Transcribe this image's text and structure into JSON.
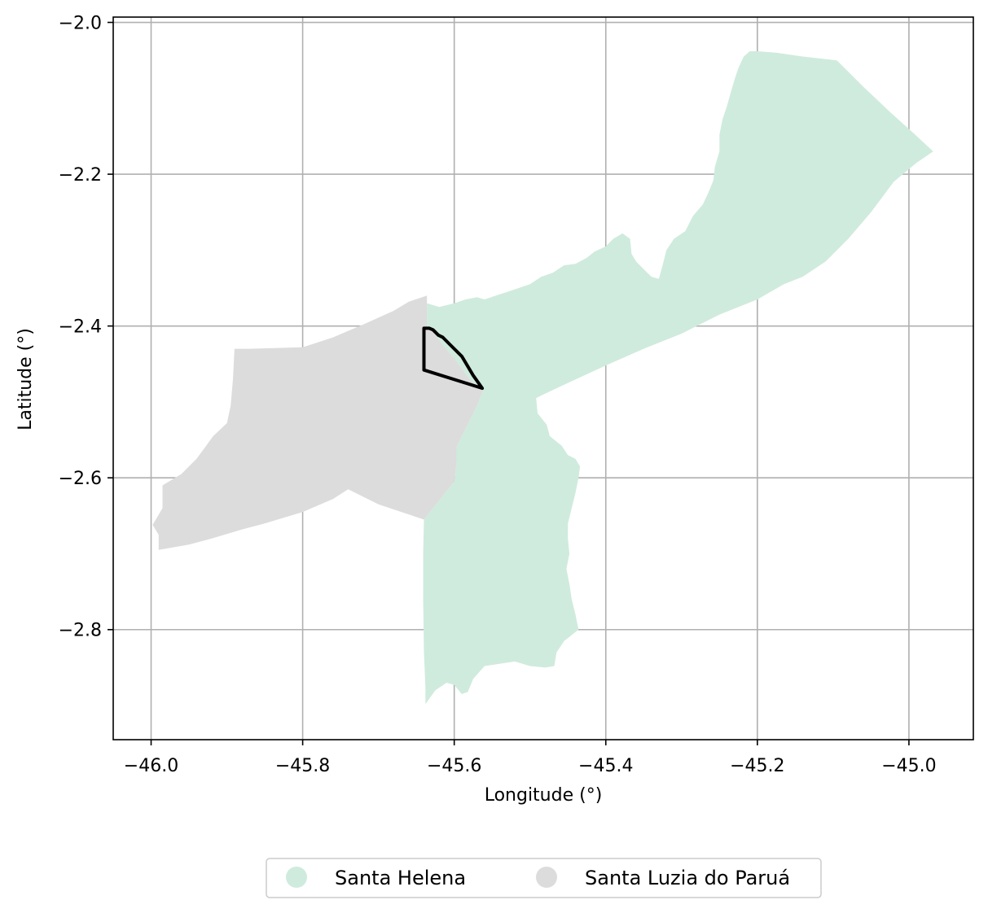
{
  "chart_data": {
    "type": "map",
    "xlabel": "Longitude (°)",
    "ylabel": "Latitude (°)",
    "xlim": [
      -46.05,
      -44.915
    ],
    "ylim": [
      -2.945,
      -1.993
    ],
    "x_ticks": [
      {
        "value": -46.0,
        "label": "−46.0"
      },
      {
        "value": -45.8,
        "label": "−45.8"
      },
      {
        "value": -45.6,
        "label": "−45.6"
      },
      {
        "value": -45.4,
        "label": "−45.4"
      },
      {
        "value": -45.2,
        "label": "−45.2"
      },
      {
        "value": -45.0,
        "label": "−45.0"
      }
    ],
    "y_ticks": [
      {
        "value": -2.0,
        "label": "−2.0"
      },
      {
        "value": -2.2,
        "label": "−2.2"
      },
      {
        "value": -2.4,
        "label": "−2.4"
      },
      {
        "value": -2.6,
        "label": "−2.6"
      },
      {
        "value": -2.8,
        "label": "−2.8"
      }
    ],
    "grid": true,
    "legend_placement": "bottom-center",
    "regions": [
      {
        "name": "Santa Helena",
        "color": "#cfebdd",
        "polygon": [
          [
            -45.636,
            -2.37
          ],
          [
            -45.62,
            -2.375
          ],
          [
            -45.6,
            -2.37
          ],
          [
            -45.585,
            -2.365
          ],
          [
            -45.57,
            -2.362
          ],
          [
            -45.56,
            -2.365
          ],
          [
            -45.545,
            -2.36
          ],
          [
            -45.53,
            -2.355
          ],
          [
            -45.515,
            -2.35
          ],
          [
            -45.5,
            -2.345
          ],
          [
            -45.485,
            -2.335
          ],
          [
            -45.47,
            -2.33
          ],
          [
            -45.455,
            -2.32
          ],
          [
            -45.44,
            -2.318
          ],
          [
            -45.425,
            -2.31
          ],
          [
            -45.415,
            -2.302
          ],
          [
            -45.4,
            -2.295
          ],
          [
            -45.39,
            -2.285
          ],
          [
            -45.378,
            -2.278
          ],
          [
            -45.368,
            -2.285
          ],
          [
            -45.366,
            -2.305
          ],
          [
            -45.36,
            -2.315
          ],
          [
            -45.35,
            -2.325
          ],
          [
            -45.34,
            -2.335
          ],
          [
            -45.33,
            -2.338
          ],
          [
            -45.325,
            -2.32
          ],
          [
            -45.32,
            -2.3
          ],
          [
            -45.31,
            -2.285
          ],
          [
            -45.295,
            -2.275
          ],
          [
            -45.285,
            -2.255
          ],
          [
            -45.272,
            -2.24
          ],
          [
            -45.265,
            -2.225
          ],
          [
            -45.258,
            -2.208
          ],
          [
            -45.256,
            -2.19
          ],
          [
            -45.25,
            -2.17
          ],
          [
            -45.25,
            -2.148
          ],
          [
            -45.246,
            -2.128
          ],
          [
            -45.24,
            -2.11
          ],
          [
            -45.235,
            -2.092
          ],
          [
            -45.23,
            -2.075
          ],
          [
            -45.225,
            -2.06
          ],
          [
            -45.218,
            -2.045
          ],
          [
            -45.21,
            -2.038
          ],
          [
            -45.2,
            -2.038
          ],
          [
            -45.175,
            -2.04
          ],
          [
            -45.14,
            -2.045
          ],
          [
            -45.095,
            -2.05
          ],
          [
            -45.06,
            -2.085
          ],
          [
            -45.025,
            -2.118
          ],
          [
            -44.995,
            -2.145
          ],
          [
            -44.968,
            -2.17
          ],
          [
            -44.99,
            -2.185
          ],
          [
            -45.02,
            -2.21
          ],
          [
            -45.05,
            -2.25
          ],
          [
            -45.08,
            -2.285
          ],
          [
            -45.11,
            -2.315
          ],
          [
            -45.14,
            -2.335
          ],
          [
            -45.165,
            -2.345
          ],
          [
            -45.2,
            -2.365
          ],
          [
            -45.25,
            -2.385
          ],
          [
            -45.3,
            -2.41
          ],
          [
            -45.35,
            -2.43
          ],
          [
            -45.4,
            -2.452
          ],
          [
            -45.45,
            -2.475
          ],
          [
            -45.482,
            -2.49
          ],
          [
            -45.492,
            -2.495
          ],
          [
            -45.49,
            -2.515
          ],
          [
            -45.478,
            -2.53
          ],
          [
            -45.474,
            -2.545
          ],
          [
            -45.458,
            -2.558
          ],
          [
            -45.45,
            -2.57
          ],
          [
            -45.44,
            -2.575
          ],
          [
            -45.434,
            -2.585
          ],
          [
            -45.436,
            -2.6
          ],
          [
            -45.44,
            -2.62
          ],
          [
            -45.445,
            -2.64
          ],
          [
            -45.45,
            -2.66
          ],
          [
            -45.45,
            -2.68
          ],
          [
            -45.448,
            -2.7
          ],
          [
            -45.452,
            -2.72
          ],
          [
            -45.448,
            -2.74
          ],
          [
            -45.445,
            -2.76
          ],
          [
            -45.44,
            -2.78
          ],
          [
            -45.436,
            -2.8
          ],
          [
            -45.455,
            -2.815
          ],
          [
            -45.465,
            -2.83
          ],
          [
            -45.468,
            -2.848
          ],
          [
            -45.48,
            -2.85
          ],
          [
            -45.5,
            -2.848
          ],
          [
            -45.52,
            -2.842
          ],
          [
            -45.54,
            -2.845
          ],
          [
            -45.56,
            -2.848
          ],
          [
            -45.575,
            -2.865
          ],
          [
            -45.582,
            -2.882
          ],
          [
            -45.59,
            -2.885
          ],
          [
            -45.6,
            -2.873
          ],
          [
            -45.61,
            -2.87
          ],
          [
            -45.625,
            -2.88
          ],
          [
            -45.638,
            -2.898
          ],
          [
            -45.638,
            -2.875
          ],
          [
            -45.64,
            -2.83
          ],
          [
            -45.641,
            -2.76
          ],
          [
            -45.641,
            -2.7
          ],
          [
            -45.64,
            -2.655
          ],
          [
            -45.612,
            -2.62
          ],
          [
            -45.6,
            -2.605
          ],
          [
            -45.597,
            -2.58
          ],
          [
            -45.597,
            -2.56
          ],
          [
            -45.59,
            -2.545
          ],
          [
            -45.58,
            -2.525
          ],
          [
            -45.57,
            -2.505
          ],
          [
            -45.562,
            -2.485
          ],
          [
            -45.58,
            -2.47
          ],
          [
            -45.598,
            -2.445
          ],
          [
            -45.615,
            -2.425
          ],
          [
            -45.63,
            -2.405
          ],
          [
            -45.636,
            -2.4
          ]
        ]
      },
      {
        "name": "Santa Luzia do Paruá",
        "color": "#dcdcdc",
        "polygon": [
          [
            -45.636,
            -2.36
          ],
          [
            -45.636,
            -2.4
          ],
          [
            -45.63,
            -2.405
          ],
          [
            -45.615,
            -2.425
          ],
          [
            -45.598,
            -2.445
          ],
          [
            -45.58,
            -2.47
          ],
          [
            -45.562,
            -2.485
          ],
          [
            -45.57,
            -2.505
          ],
          [
            -45.58,
            -2.525
          ],
          [
            -45.59,
            -2.545
          ],
          [
            -45.597,
            -2.56
          ],
          [
            -45.597,
            -2.58
          ],
          [
            -45.6,
            -2.605
          ],
          [
            -45.612,
            -2.62
          ],
          [
            -45.64,
            -2.655
          ],
          [
            -45.7,
            -2.635
          ],
          [
            -45.74,
            -2.615
          ],
          [
            -45.76,
            -2.628
          ],
          [
            -45.8,
            -2.645
          ],
          [
            -45.85,
            -2.66
          ],
          [
            -45.88,
            -2.668
          ],
          [
            -45.92,
            -2.68
          ],
          [
            -45.95,
            -2.688
          ],
          [
            -45.99,
            -2.695
          ],
          [
            -45.99,
            -2.675
          ],
          [
            -45.998,
            -2.662
          ],
          [
            -45.985,
            -2.64
          ],
          [
            -45.985,
            -2.61
          ],
          [
            -45.96,
            -2.595
          ],
          [
            -45.94,
            -2.575
          ],
          [
            -45.918,
            -2.545
          ],
          [
            -45.9,
            -2.528
          ],
          [
            -45.895,
            -2.505
          ],
          [
            -45.892,
            -2.47
          ],
          [
            -45.89,
            -2.43
          ],
          [
            -45.87,
            -2.43
          ],
          [
            -45.8,
            -2.428
          ],
          [
            -45.76,
            -2.415
          ],
          [
            -45.72,
            -2.398
          ],
          [
            -45.68,
            -2.38
          ],
          [
            -45.66,
            -2.368
          ]
        ]
      }
    ],
    "outline": {
      "color": "#000000",
      "polygon": [
        [
          -45.64,
          -2.403
        ],
        [
          -45.64,
          -2.458
        ],
        [
          -45.563,
          -2.482
        ],
        [
          -45.575,
          -2.465
        ],
        [
          -45.59,
          -2.44
        ],
        [
          -45.605,
          -2.425
        ],
        [
          -45.615,
          -2.415
        ],
        [
          -45.621,
          -2.412
        ],
        [
          -45.625,
          -2.408
        ],
        [
          -45.628,
          -2.405
        ],
        [
          -45.633,
          -2.403
        ]
      ]
    },
    "legend": [
      {
        "label": "Santa Helena",
        "color": "#cfebdd"
      },
      {
        "label": "Santa Luzia do Paruá",
        "color": "#dcdcdc"
      }
    ]
  }
}
